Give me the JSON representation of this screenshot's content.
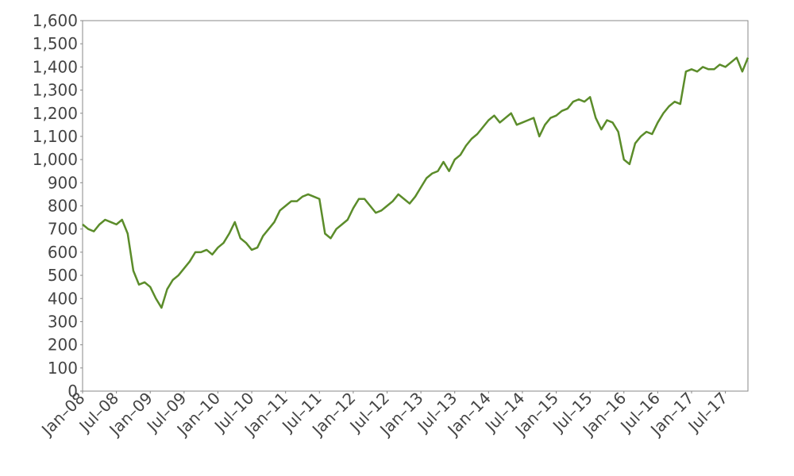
{
  "chart_data": {
    "type": "line",
    "x": [
      "2008-01",
      "2008-02",
      "2008-03",
      "2008-04",
      "2008-05",
      "2008-06",
      "2008-07",
      "2008-08",
      "2008-09",
      "2008-10",
      "2008-11",
      "2008-12",
      "2009-01",
      "2009-02",
      "2009-03",
      "2009-04",
      "2009-05",
      "2009-06",
      "2009-07",
      "2009-08",
      "2009-09",
      "2009-10",
      "2009-11",
      "2009-12",
      "2010-01",
      "2010-02",
      "2010-03",
      "2010-04",
      "2010-05",
      "2010-06",
      "2010-07",
      "2010-08",
      "2010-09",
      "2010-10",
      "2010-11",
      "2010-12",
      "2011-01",
      "2011-02",
      "2011-03",
      "2011-04",
      "2011-05",
      "2011-06",
      "2011-07",
      "2011-08",
      "2011-09",
      "2011-10",
      "2011-11",
      "2011-12",
      "2012-01",
      "2012-02",
      "2012-03",
      "2012-04",
      "2012-05",
      "2012-06",
      "2012-07",
      "2012-08",
      "2012-09",
      "2012-10",
      "2012-11",
      "2012-12",
      "2013-01",
      "2013-02",
      "2013-03",
      "2013-04",
      "2013-05",
      "2013-06",
      "2013-07",
      "2013-08",
      "2013-09",
      "2013-10",
      "2013-11",
      "2013-12",
      "2014-01",
      "2014-02",
      "2014-03",
      "2014-04",
      "2014-05",
      "2014-06",
      "2014-07",
      "2014-08",
      "2014-09",
      "2014-10",
      "2014-11",
      "2014-12",
      "2015-01",
      "2015-02",
      "2015-03",
      "2015-04",
      "2015-05",
      "2015-06",
      "2015-07",
      "2015-08",
      "2015-09",
      "2015-10",
      "2015-11",
      "2015-12",
      "2016-01",
      "2016-02",
      "2016-03",
      "2016-04",
      "2016-05",
      "2016-06",
      "2016-07",
      "2016-08",
      "2016-09",
      "2016-10",
      "2016-11",
      "2016-12",
      "2017-01",
      "2017-02",
      "2017-03",
      "2017-04",
      "2017-05",
      "2017-06",
      "2017-07",
      "2017-08",
      "2017-09",
      "2017-10",
      "2017-11"
    ],
    "series": [
      {
        "color": "#5b8c2a",
        "values": [
          720,
          700,
          690,
          720,
          740,
          730,
          720,
          740,
          680,
          520,
          460,
          470,
          450,
          400,
          360,
          440,
          480,
          500,
          530,
          560,
          600,
          600,
          610,
          590,
          620,
          640,
          680,
          730,
          660,
          640,
          610,
          620,
          670,
          700,
          730,
          780,
          800,
          820,
          820,
          840,
          850,
          840,
          830,
          680,
          660,
          700,
          720,
          740,
          790,
          830,
          830,
          800,
          770,
          780,
          800,
          820,
          850,
          830,
          810,
          840,
          880,
          920,
          940,
          950,
          990,
          950,
          1000,
          1020,
          1060,
          1090,
          1110,
          1140,
          1170,
          1190,
          1160,
          1180,
          1200,
          1150,
          1160,
          1170,
          1180,
          1100,
          1150,
          1180,
          1190,
          1210,
          1220,
          1250,
          1260,
          1250,
          1270,
          1180,
          1130,
          1170,
          1160,
          1120,
          1000,
          980,
          1070,
          1100,
          1120,
          1110,
          1160,
          1200,
          1230,
          1250,
          1240,
          1380,
          1390,
          1380,
          1400,
          1390,
          1390,
          1410,
          1400,
          1420,
          1440,
          1380,
          1440
        ]
      }
    ],
    "xlim": [
      "2008-01",
      "2017-11"
    ],
    "xticks": [
      {
        "value": "2008-01",
        "label": "Jan–08"
      },
      {
        "value": "2008-07",
        "label": "Jul–08"
      },
      {
        "value": "2009-01",
        "label": "Jan–09"
      },
      {
        "value": "2009-07",
        "label": "Jul–09"
      },
      {
        "value": "2010-01",
        "label": "Jan–10"
      },
      {
        "value": "2010-07",
        "label": "Jul–10"
      },
      {
        "value": "2011-01",
        "label": "Jan–11"
      },
      {
        "value": "2011-07",
        "label": "Jul–11"
      },
      {
        "value": "2012-01",
        "label": "Jan–12"
      },
      {
        "value": "2012-07",
        "label": "Jul–12"
      },
      {
        "value": "2013-01",
        "label": "Jan–13"
      },
      {
        "value": "2013-07",
        "label": "Jul–13"
      },
      {
        "value": "2014-01",
        "label": "Jan–14"
      },
      {
        "value": "2014-07",
        "label": "Jul–14"
      },
      {
        "value": "2015-01",
        "label": "Jan–15"
      },
      {
        "value": "2015-07",
        "label": "Jul–15"
      },
      {
        "value": "2016-01",
        "label": "Jan–16"
      },
      {
        "value": "2016-07",
        "label": "Jul–16"
      },
      {
        "value": "2017-01",
        "label": "Jan–17"
      },
      {
        "value": "2017-07",
        "label": "Jul–17"
      }
    ],
    "ylim": [
      0,
      1600
    ],
    "yticks": [
      0,
      100,
      200,
      300,
      400,
      500,
      600,
      700,
      800,
      900,
      {
        "value": 1000,
        "label": "1,000"
      },
      {
        "value": 1100,
        "label": "1,100"
      },
      {
        "value": 1200,
        "label": "1,200"
      },
      {
        "value": 1300,
        "label": "1,300"
      },
      {
        "value": 1400,
        "label": "1,400"
      },
      {
        "value": 1500,
        "label": "1,500"
      },
      {
        "value": 1600,
        "label": "1,600"
      }
    ],
    "grid": false
  }
}
